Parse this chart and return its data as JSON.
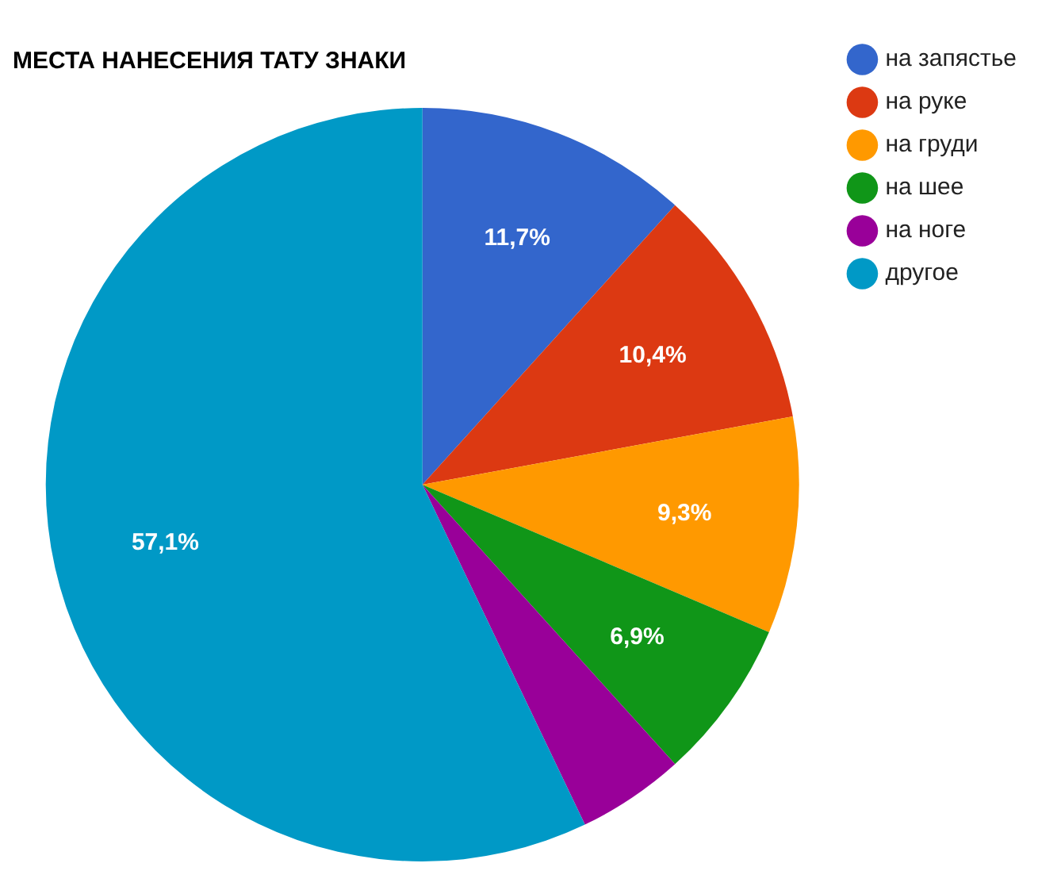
{
  "chart_data": {
    "type": "pie",
    "title": "МЕСТА НАНЕСЕНИЯ ТАТУ ЗНАКИ",
    "categories": [
      "на запястье",
      "на руке",
      "на груди",
      "на шее",
      "на ноге",
      "другое"
    ],
    "values": [
      11.7,
      10.4,
      9.3,
      6.9,
      4.6,
      57.1
    ],
    "colors": [
      "#3366cc",
      "#dc3912",
      "#ff9900",
      "#109618",
      "#990099",
      "#0099c6"
    ],
    "value_labels": [
      "11,7%",
      "10,4%",
      "9,3%",
      "6,9%",
      null,
      "57,1%"
    ],
    "legend": "top right"
  }
}
